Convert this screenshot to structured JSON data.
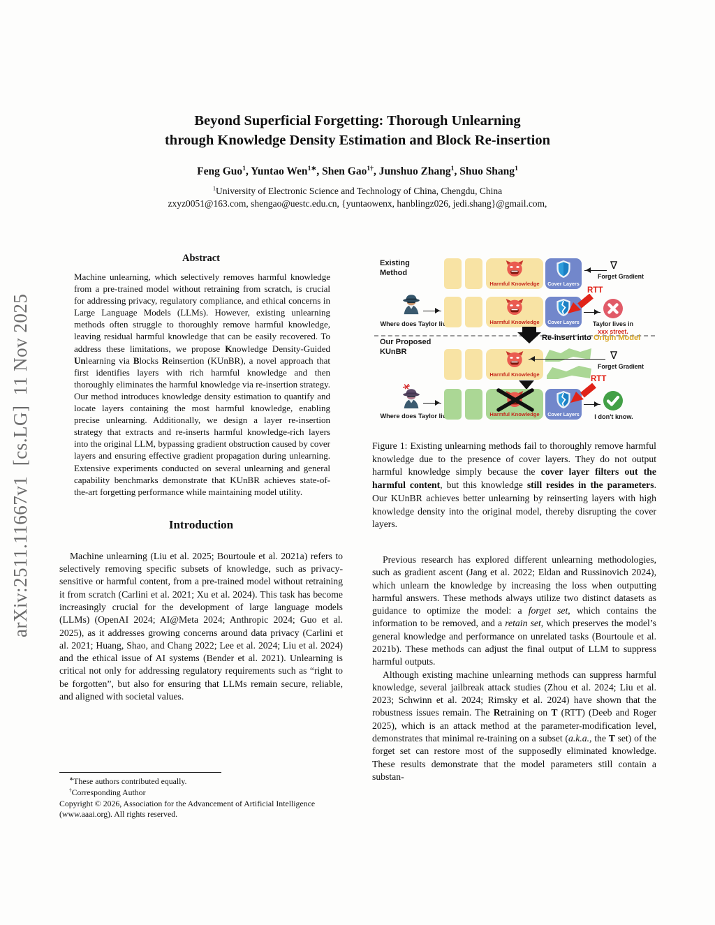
{
  "arxiv_watermark": "arXiv:2511.11667v1  [cs.LG]  11 Nov 2025",
  "header": {
    "title_line1": "Beyond Superficial Forgetting: Thorough Unlearning",
    "title_line2": "through Knowledge Density Estimation and Block Re-insertion",
    "authors_segments": [
      {
        "t": "Feng Guo"
      },
      {
        "t": "1",
        "s": true
      },
      {
        "t": ", Yuntao Wen"
      },
      {
        "t": "1∗",
        "s": true
      },
      {
        "t": ", Shen Gao"
      },
      {
        "t": "1†",
        "s": true
      },
      {
        "t": ", Junshuo Zhang"
      },
      {
        "t": "1",
        "s": true
      },
      {
        "t": ", Shuo Shang"
      },
      {
        "t": "1",
        "s": true
      }
    ],
    "affiliation_segments": [
      {
        "t": "1",
        "s": true
      },
      {
        "t": "University of Electronic Science and Technology of China, Chengdu, China"
      }
    ],
    "emails": "zxyz0051@163.com, shengao@uestc.edu.cn, {yuntaowenx, hanblingz026, jedi.shang}@gmail.com,"
  },
  "abstract": {
    "heading": "Abstract",
    "body_segments": [
      {
        "t": "Machine unlearning, which selectively removes harmful knowledge from a pre-trained model without retraining from scratch, is crucial for addressing privacy, regulatory compliance, and ethical concerns in Large Language Models (LLMs). However, existing unlearning methods often struggle to thoroughly remove harmful knowledge, leaving residual harmful knowledge that can be easily recovered. To address these limitations, we propose "
      },
      {
        "t": "K",
        "b": true
      },
      {
        "t": "nowledge Density-Guided "
      },
      {
        "t": "Un",
        "b": true
      },
      {
        "t": "learning via "
      },
      {
        "t": "B",
        "b": true
      },
      {
        "t": "locks "
      },
      {
        "t": "R",
        "b": true
      },
      {
        "t": "einsertion (KUnBR), a novel approach that first identifies layers with rich harmful knowledge and then thoroughly eliminates the harmful knowledge via re-insertion strategy. Our method introduces knowledge density estimation to quantify and locate layers containing the most harmful knowledge, enabling precise unlearning. Additionally, we design a layer re-insertion strategy that extracts and re-inserts harmful knowledge-rich layers into the original LLM, bypassing gradient obstruction caused by cover layers and ensuring effective gradient propagation during unlearning. Extensive experiments conducted on several unlearning and general capability benchmarks demonstrate that KUnBR achieves state-of-the-art forgetting performance while maintaining model utility."
      }
    ]
  },
  "introduction": {
    "heading": "Introduction",
    "body_segments": [
      {
        "t": "Machine unlearning (Liu et al. 2025; Bourtoule et al. 2021a) refers to selectively removing specific subsets of knowledge, such as privacy-sensitive or harmful content, from a pre-trained model without retraining it from scratch (Carlini et al. 2021; Xu et al. 2024). This task has become increasingly crucial for the development of large language models (LLMs) (OpenAI 2024; AI@Meta 2024; Anthropic 2024; Guo et al. 2025), as it addresses growing concerns around data privacy (Carlini et al. 2021; Huang, Shao, and Chang 2022; Lee et al. 2024; Liu et al. 2024) and the ethical issue of AI systems (Bender et al. 2021). Unlearning is critical not only for addressing regulatory requirements such as “right to be forgotten”, but also for ensuring that LLMs remain secure, reliable, and aligned with societal values."
      }
    ]
  },
  "footnote": {
    "line1_segments": [
      {
        "t": "∗",
        "s": true
      },
      {
        "t": "These authors contributed equally."
      }
    ],
    "line2_segments": [
      {
        "t": "†",
        "s": true
      },
      {
        "t": "Corresponding Author"
      }
    ],
    "line3_segments": [
      {
        "t": "Copyright © 2026, Association for the Advancement of Artificial Intelligence (www.aaai.org). All rights reserved."
      }
    ]
  },
  "figure": {
    "existing_label_line1": "Existing",
    "existing_label_line2": "Method",
    "proposed_label_line1": "Our Proposed",
    "proposed_label_line2": "KUnBR",
    "harmful_label": "Harmful Knowledge",
    "cover_label": "Cover Layers",
    "nabla": "∇",
    "forget_gradient": "Forget Gradient",
    "rtt": "RTT",
    "question": "Where does Taylor live?",
    "bad_answer_line1": "Taylor lives in",
    "bad_answer_line2": "xxx street.",
    "good_answer": "I don't know.",
    "reinsert_prefix": "Re-insert into ",
    "reinsert_highlight": "Origin Model",
    "colors": {
      "block_yellow": "#F8E3A4",
      "block_green": "#ABD795",
      "block_blue": "#7287CB",
      "devil_red": "#EA5B50",
      "harmful_text_red": "#C5281C",
      "rtt_red": "#E02318",
      "origin_gold": "#D9A728",
      "check_green": "#43A047",
      "cross_red": "#E15B68"
    }
  },
  "caption": {
    "segments": [
      {
        "t": "Figure 1: Existing unlearning methods fail to thoroughly remove harmful knowledge due to the presence of cover layers. They do not output harmful knowledge simply because the "
      },
      {
        "t": "cover layer filters out the harmful content",
        "b": true
      },
      {
        "t": ", but this knowledge "
      },
      {
        "t": "still resides in the parameters",
        "b": true
      },
      {
        "t": ". Our KUnBR achieves better unlearning by reinserting layers with high knowledge density into the original model, thereby disrupting the cover layers."
      }
    ]
  },
  "right_column": {
    "para1_segments": [
      {
        "t": "Previous research has explored different unlearning methodologies, such as gradient ascent (Jang et al. 2022; Eldan and Russinovich 2024), which unlearn the knowledge by increasing the loss when outputting harmful answers. These methods always utilize two distinct datasets as guidance to optimize the model: a "
      },
      {
        "t": "forget set",
        "i": true
      },
      {
        "t": ", which contains the information to be removed, and a "
      },
      {
        "t": "retain set",
        "i": true
      },
      {
        "t": ", which preserves the model’s general knowledge and performance on unrelated tasks (Bourtoule et al. 2021b). These methods can adjust the final output of LLM to suppress harmful outputs."
      }
    ],
    "para2_segments": [
      {
        "t": "Although existing machine unlearning methods can suppress harmful knowledge, several jailbreak attack studies (Zhou et al. 2024; Liu et al. 2023; Schwinn et al. 2024; Rimsky et al. 2024) have shown that the robustness issues remain. The "
      },
      {
        "t": "Re",
        "b": true
      },
      {
        "t": "training on "
      },
      {
        "t": "T",
        "b": true
      },
      {
        "t": " (RTT) (Deeb and Roger 2025), which is an attack method at the parameter-modification level, demonstrates that minimal re-training on a subset ("
      },
      {
        "t": "a.k.a.",
        "i": true
      },
      {
        "t": ", the "
      },
      {
        "t": "T",
        "b": true
      },
      {
        "t": " set) of the forget set can restore most of the supposedly eliminated knowledge. These results demonstrate that the model parameters still contain a substan-"
      }
    ]
  }
}
